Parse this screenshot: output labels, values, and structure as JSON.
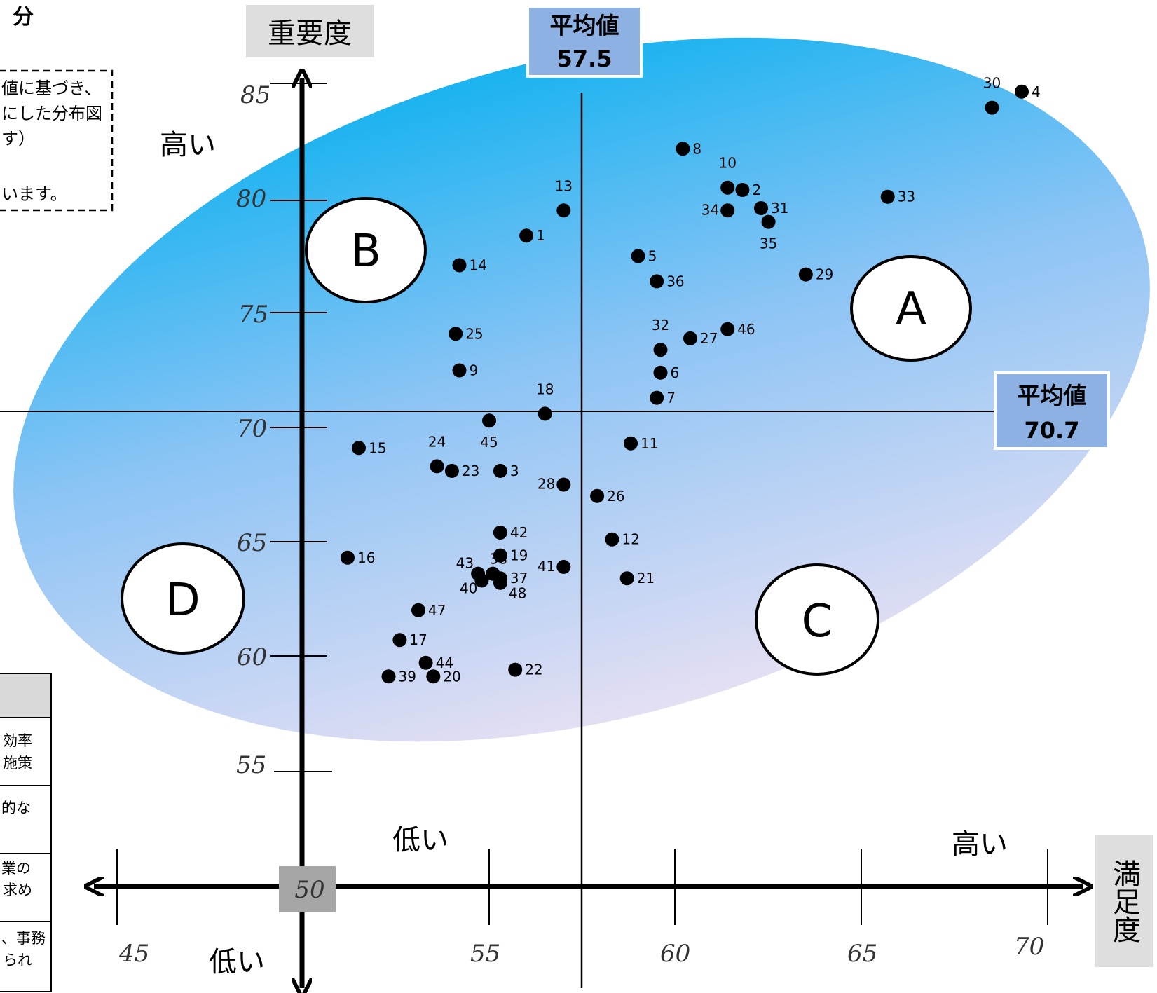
{
  "chart_data": {
    "type": "scatter",
    "x_axis_title": "満足度",
    "y_axis_title": "重要度",
    "x_ticks": [
      45,
      55,
      60,
      65,
      70
    ],
    "y_ticks": [
      55,
      60,
      65,
      70,
      75,
      80,
      85
    ],
    "origin_label": "50",
    "x_low_label": "低い",
    "x_high_label": "高い",
    "y_low_label": "低い",
    "y_high_label": "高い",
    "x_mean": {
      "title": "平均値",
      "value": "57.5"
    },
    "y_mean": {
      "title": "平均値",
      "value": "70.7"
    },
    "quadrants": [
      "A",
      "B",
      "C",
      "D"
    ],
    "points": [
      {
        "label": "1",
        "x": 56.0,
        "y": 78.4
      },
      {
        "label": "2",
        "x": 61.8,
        "y": 80.4
      },
      {
        "label": "3",
        "x": 55.3,
        "y": 68.1
      },
      {
        "label": "4",
        "x": 69.3,
        "y": 84.7
      },
      {
        "label": "5",
        "x": 59.0,
        "y": 77.5
      },
      {
        "label": "6",
        "x": 59.6,
        "y": 72.4
      },
      {
        "label": "7",
        "x": 59.5,
        "y": 71.3
      },
      {
        "label": "8",
        "x": 60.2,
        "y": 82.2
      },
      {
        "label": "9",
        "x": 54.2,
        "y": 72.5
      },
      {
        "label": "10",
        "x": 61.4,
        "y": 80.5
      },
      {
        "label": "11",
        "x": 58.8,
        "y": 69.3
      },
      {
        "label": "12",
        "x": 58.3,
        "y": 65.1
      },
      {
        "label": "13",
        "x": 57.0,
        "y": 79.5
      },
      {
        "label": "14",
        "x": 54.2,
        "y": 77.1
      },
      {
        "label": "15",
        "x": 51.5,
        "y": 69.1
      },
      {
        "label": "16",
        "x": 51.2,
        "y": 64.3
      },
      {
        "label": "17",
        "x": 52.6,
        "y": 60.7
      },
      {
        "label": "18",
        "x": 56.5,
        "y": 70.6
      },
      {
        "label": "19",
        "x": 55.3,
        "y": 64.4
      },
      {
        "label": "20",
        "x": 53.5,
        "y": 59.1
      },
      {
        "label": "21",
        "x": 58.7,
        "y": 63.4
      },
      {
        "label": "22",
        "x": 55.7,
        "y": 59.4
      },
      {
        "label": "23",
        "x": 54.0,
        "y": 68.1
      },
      {
        "label": "24",
        "x": 53.6,
        "y": 68.3
      },
      {
        "label": "25",
        "x": 54.1,
        "y": 74.1
      },
      {
        "label": "26",
        "x": 57.9,
        "y": 67.0
      },
      {
        "label": "27",
        "x": 60.4,
        "y": 73.9
      },
      {
        "label": "28",
        "x": 57.0,
        "y": 67.5
      },
      {
        "label": "29",
        "x": 63.5,
        "y": 76.7
      },
      {
        "label": "30",
        "x": 68.5,
        "y": 84.0
      },
      {
        "label": "31",
        "x": 62.3,
        "y": 79.6
      },
      {
        "label": "32",
        "x": 59.6,
        "y": 73.4
      },
      {
        "label": "33",
        "x": 65.7,
        "y": 80.1
      },
      {
        "label": "34",
        "x": 61.4,
        "y": 79.5
      },
      {
        "label": "35",
        "x": 62.5,
        "y": 79.0
      },
      {
        "label": "36",
        "x": 59.5,
        "y": 76.4
      },
      {
        "label": "37",
        "x": 55.3,
        "y": 63.4
      },
      {
        "label": "38",
        "x": 55.1,
        "y": 63.6
      },
      {
        "label": "39",
        "x": 52.3,
        "y": 59.1
      },
      {
        "label": "40",
        "x": 54.8,
        "y": 63.3
      },
      {
        "label": "41",
        "x": 57.0,
        "y": 63.9
      },
      {
        "label": "42",
        "x": 55.3,
        "y": 65.4
      },
      {
        "label": "43",
        "x": 54.7,
        "y": 63.6
      },
      {
        "label": "44",
        "x": 53.3,
        "y": 59.7
      },
      {
        "label": "45",
        "x": 55.0,
        "y": 70.3
      },
      {
        "label": "46",
        "x": 61.4,
        "y": 74.3
      },
      {
        "label": "47",
        "x": 53.1,
        "y": 62.0
      },
      {
        "label": "48",
        "x": 55.3,
        "y": 63.2
      }
    ]
  },
  "fragments": {
    "title": "分",
    "note": [
      "値に基づき、",
      "にした分布図",
      "す）",
      "います。"
    ],
    "table_rows": [
      [
        "効率",
        "施策"
      ],
      [
        "的な"
      ],
      [
        "業の",
        "求め"
      ],
      [
        "、事務",
        "られ"
      ]
    ]
  },
  "colors": {
    "ellipse_top": "#1ab3f0",
    "ellipse_mid": "#8cc4f5",
    "ellipse_bottom": "#e4dff3",
    "mean_box": "#8db1e3",
    "axis_title_box": "#dedede",
    "origin_box": "#a6a6a6"
  }
}
